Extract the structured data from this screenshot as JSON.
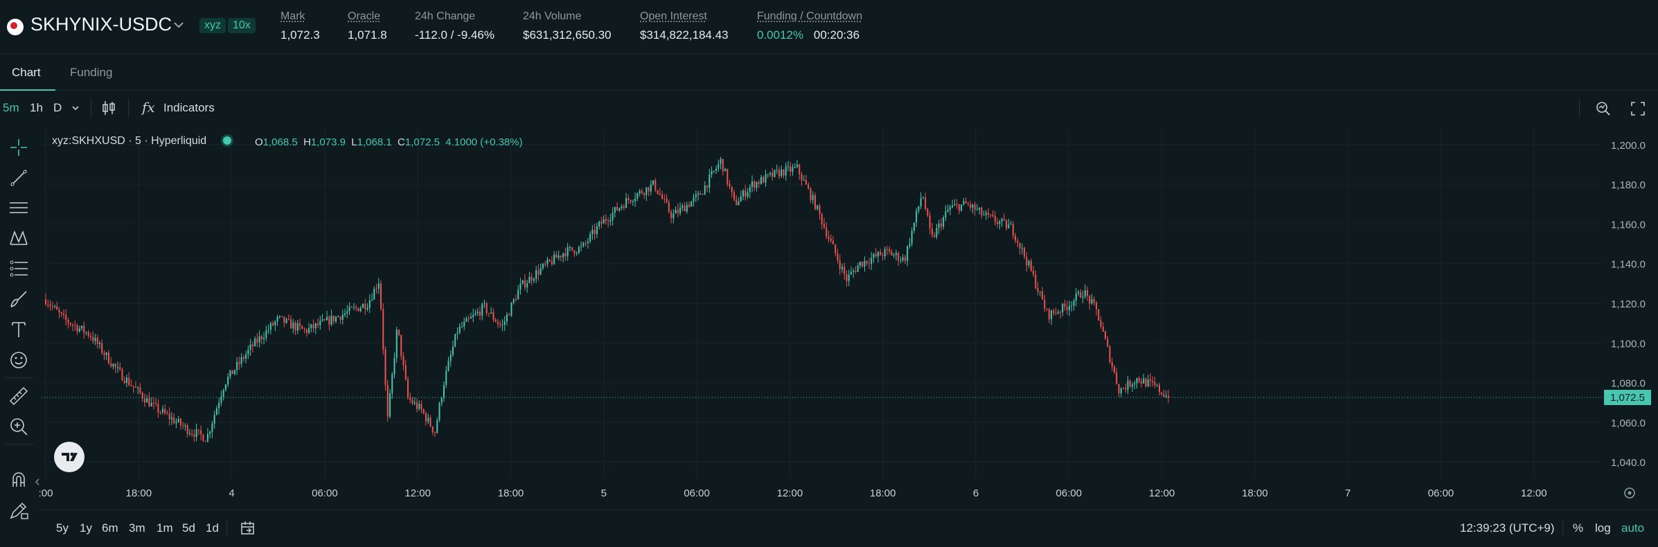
{
  "header": {
    "symbol": "SKHYNIX-USDC",
    "badge_dex": "xyz",
    "badge_leverage": "10x",
    "stats": {
      "mark_label": "Mark",
      "mark_value": "1,072.3",
      "oracle_label": "Oracle",
      "oracle_value": "1,071.8",
      "change_label": "24h Change",
      "change_value": "-112.0 / -9.46%",
      "volume_label": "24h Volume",
      "volume_value": "$631,312,650.30",
      "oi_label": "Open Interest",
      "oi_value": "$314,822,184.43",
      "funding_label": "Funding / Countdown",
      "funding_rate": "0.0012%",
      "funding_countdown": "00:20:36"
    }
  },
  "tabs": {
    "chart": "Chart",
    "funding": "Funding"
  },
  "toolbar": {
    "timeframes": [
      "5m",
      "1h",
      "D"
    ],
    "active_timeframe": "5m",
    "indicators_label": "Indicators",
    "fx_glyph": "fx"
  },
  "chart": {
    "legend_title": "xyz:SKHXUSD · 5 · Hyperliquid",
    "ohlc": {
      "o_label": "O",
      "o_value": "1,068.5",
      "h_label": "H",
      "h_value": "1,073.9",
      "l_label": "L",
      "l_value": "1,068.1",
      "c_label": "C",
      "c_value": "1,072.5",
      "change": "4.1000 (+0.38%)"
    },
    "last_price_label": "1,072.5",
    "colors": {
      "up": "#47c6b0",
      "down": "#ef5350",
      "accent": "#47c6b0",
      "grid": "#17252b",
      "background": "#0f1a1f"
    }
  },
  "chart_data": {
    "type": "candlestick",
    "series_name": "xyz:SKHXUSD",
    "interval": "5m",
    "ylim": [
      1032,
      1208
    ],
    "y_ticks": [
      1200.0,
      1180.0,
      1160.0,
      1140.0,
      1120.0,
      1100.0,
      1080.0,
      1060.0,
      1040.0
    ],
    "y_tick_labels": [
      "1,200.0",
      "1,180.0",
      "1,160.0",
      "1,140.0",
      "1,120.0",
      "1,100.0",
      "1,080.0",
      "1,060.0",
      "1,040.0"
    ],
    "x_tick_labels": [
      ":00",
      "18:00",
      "4",
      "06:00",
      "12:00",
      "18:00",
      "5",
      "06:00",
      "12:00",
      "18:00",
      "6",
      "06:00",
      "12:00",
      "18:00",
      "7",
      "06:00",
      "12:00"
    ],
    "last_price": 1072.5,
    "grid": true,
    "path_points": [
      {
        "t": 0,
        "p": 1122
      },
      {
        "t": 2,
        "p": 1112
      },
      {
        "t": 5,
        "p": 1104
      },
      {
        "t": 8,
        "p": 1086
      },
      {
        "t": 12,
        "p": 1068
      },
      {
        "t": 16,
        "p": 1056
      },
      {
        "t": 18,
        "p": 1052
      },
      {
        "t": 20,
        "p": 1080
      },
      {
        "t": 23,
        "p": 1098
      },
      {
        "t": 26,
        "p": 1112
      },
      {
        "t": 29,
        "p": 1106
      },
      {
        "t": 33,
        "p": 1114
      },
      {
        "t": 36,
        "p": 1120
      },
      {
        "t": 37.3,
        "p": 1132
      },
      {
        "t": 38.2,
        "p": 1060
      },
      {
        "t": 39.3,
        "p": 1108
      },
      {
        "t": 40.5,
        "p": 1072
      },
      {
        "t": 42,
        "p": 1066
      },
      {
        "t": 43.5,
        "p": 1055
      },
      {
        "t": 44.5,
        "p": 1080
      },
      {
        "t": 46,
        "p": 1106
      },
      {
        "t": 49,
        "p": 1118
      },
      {
        "t": 51,
        "p": 1108
      },
      {
        "t": 53,
        "p": 1128
      },
      {
        "t": 55,
        "p": 1136
      },
      {
        "t": 58,
        "p": 1146
      },
      {
        "t": 60,
        "p": 1148
      },
      {
        "t": 62,
        "p": 1160
      },
      {
        "t": 65,
        "p": 1172
      },
      {
        "t": 68,
        "p": 1180
      },
      {
        "t": 70,
        "p": 1164
      },
      {
        "t": 73,
        "p": 1174
      },
      {
        "t": 75.5,
        "p": 1192
      },
      {
        "t": 77,
        "p": 1170
      },
      {
        "t": 79,
        "p": 1180
      },
      {
        "t": 82,
        "p": 1186
      },
      {
        "t": 84,
        "p": 1188
      },
      {
        "t": 86,
        "p": 1170
      },
      {
        "t": 88,
        "p": 1148
      },
      {
        "t": 89.5,
        "p": 1132
      },
      {
        "t": 91,
        "p": 1140
      },
      {
        "t": 94,
        "p": 1146
      },
      {
        "t": 96,
        "p": 1142
      },
      {
        "t": 98,
        "p": 1176
      },
      {
        "t": 99,
        "p": 1152
      },
      {
        "t": 101,
        "p": 1168
      },
      {
        "t": 103,
        "p": 1170
      },
      {
        "t": 105,
        "p": 1164
      },
      {
        "t": 108,
        "p": 1158
      },
      {
        "t": 110,
        "p": 1138
      },
      {
        "t": 112,
        "p": 1114
      },
      {
        "t": 114,
        "p": 1118
      },
      {
        "t": 116,
        "p": 1126
      },
      {
        "t": 117.5,
        "p": 1116
      },
      {
        "t": 118.5,
        "p": 1100
      },
      {
        "t": 120,
        "p": 1076
      },
      {
        "t": 122,
        "p": 1082
      },
      {
        "t": 124,
        "p": 1078
      },
      {
        "t": 125.5,
        "p": 1072.5
      }
    ]
  },
  "bottom": {
    "ranges": [
      "5y",
      "1y",
      "6m",
      "3m",
      "1m",
      "5d",
      "1d"
    ],
    "clock": "12:39:23 (UTC+9)",
    "percent": "%",
    "log": "log",
    "auto": "auto"
  }
}
